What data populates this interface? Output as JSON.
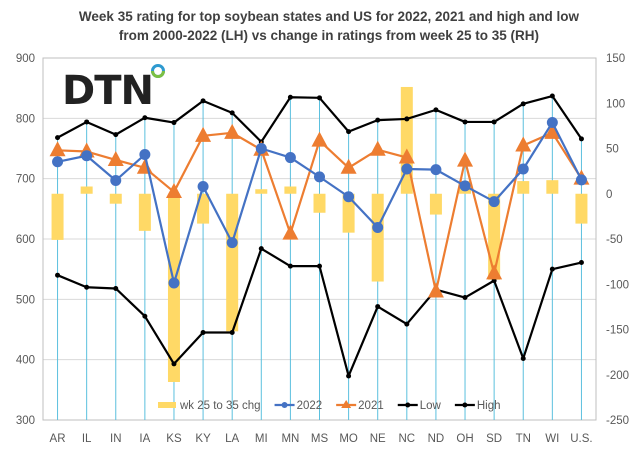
{
  "logo": {
    "text": "DTN",
    "dot_colors": [
      "#2e9ad0",
      "#7cc043"
    ]
  },
  "chart_data": {
    "type": "bar+line",
    "title": [
      "Week 35 rating for top soybean states and US for 2022, 2021 and high and low",
      "from 2000-2022 (LH) vs change in ratings from week 25 to 35 (RH)"
    ],
    "categories": [
      "AR",
      "IL",
      "IN",
      "IA",
      "KS",
      "KY",
      "LA",
      "MI",
      "MN",
      "MS",
      "MO",
      "NE",
      "NC",
      "ND",
      "OH",
      "SD",
      "TN",
      "WI",
      "U.S."
    ],
    "left_axis": {
      "ylim": [
        300,
        900
      ],
      "ticks": [
        300,
        400,
        500,
        600,
        700,
        800,
        900
      ]
    },
    "right_axis": {
      "ylim": [
        -250,
        150
      ],
      "ticks": [
        -250,
        -200,
        -150,
        -100,
        -50,
        0,
        50,
        100,
        150
      ]
    },
    "grid": true,
    "legend_position": "bottom-inside",
    "series": [
      {
        "name": "wk 25 to 35 chg",
        "type": "bar",
        "axis": "right",
        "color": "#ffd966",
        "values": [
          -51,
          8,
          -11,
          -41,
          -208,
          -33,
          -152,
          5,
          8,
          -21,
          -43,
          -97,
          118,
          -23,
          14,
          -95,
          14,
          15,
          -33
        ]
      },
      {
        "name": "2022",
        "type": "line",
        "marker": "circle",
        "axis": "left",
        "color": "#4472c4",
        "values": [
          728,
          738,
          697,
          740,
          527,
          687,
          594,
          750,
          735,
          703,
          670,
          619,
          716,
          715,
          688,
          662,
          716,
          793,
          698
        ]
      },
      {
        "name": "2021",
        "type": "line",
        "marker": "triangle",
        "axis": "left",
        "color": "#ed7d31",
        "values": [
          747,
          745,
          731,
          718,
          678,
          771,
          776,
          748,
          609,
          763,
          718,
          748,
          735,
          513,
          730,
          543,
          755,
          776,
          700
        ]
      },
      {
        "name": "Low",
        "type": "line",
        "marker": "dot",
        "axis": "left",
        "color": "#000000",
        "values": [
          540,
          520,
          518,
          472,
          393,
          445,
          445,
          584,
          555,
          555,
          373,
          488,
          459,
          516,
          503,
          531,
          402,
          550,
          561
        ]
      },
      {
        "name": "High",
        "type": "line",
        "marker": "dot",
        "axis": "left",
        "color": "#000000",
        "values": [
          768,
          794,
          773,
          801,
          793,
          829,
          809,
          761,
          835,
          834,
          778,
          797,
          799,
          814,
          794,
          794,
          824,
          837,
          766
        ]
      }
    ],
    "drop_line_color": "#5bc0de"
  }
}
